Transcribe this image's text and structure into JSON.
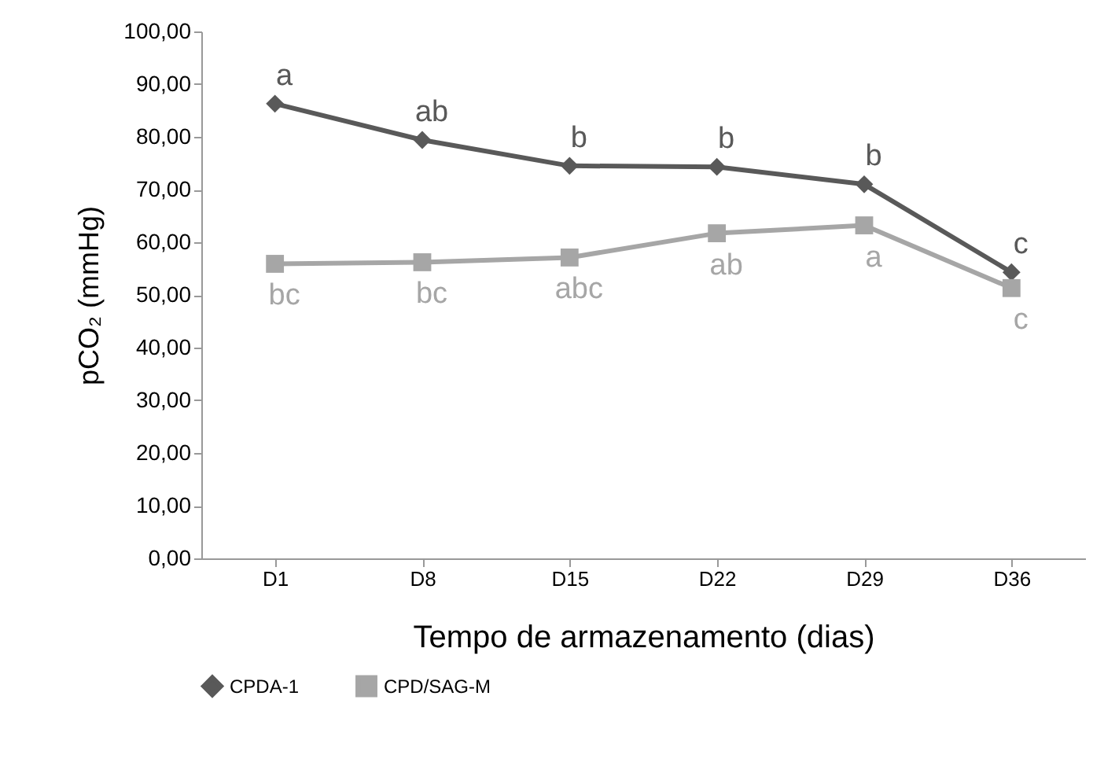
{
  "chart_data": {
    "type": "line",
    "xlabel": "Tempo de armazenamento (dias)",
    "ylabel": "pCO₂ (mmHg)",
    "categories": [
      "D1",
      "D8",
      "D15",
      "D22",
      "D29",
      "D36"
    ],
    "series": [
      {
        "name": "CPDA-1",
        "color": "#595959",
        "marker": "diamond",
        "values": [
          86.3,
          79.4,
          74.5,
          74.3,
          71.0,
          54.3
        ]
      },
      {
        "name": "CPD/SAG-M",
        "color": "#a6a6a6",
        "marker": "square",
        "values": [
          55.9,
          56.2,
          57.1,
          61.7,
          63.2,
          51.3
        ]
      }
    ],
    "ylim": [
      0,
      100
    ],
    "yticks": [
      {
        "value": 0,
        "label": "0,00"
      },
      {
        "value": 10,
        "label": "10,00"
      },
      {
        "value": 20,
        "label": "20,00"
      },
      {
        "value": 30,
        "label": "30,00"
      },
      {
        "value": 40,
        "label": "40,00"
      },
      {
        "value": 50,
        "label": "50,00"
      },
      {
        "value": 60,
        "label": "60,00"
      },
      {
        "value": 70,
        "label": "70,00"
      },
      {
        "value": 80,
        "label": "80,00"
      },
      {
        "value": 90,
        "label": "90,00"
      },
      {
        "value": 100,
        "label": "100,00"
      }
    ],
    "grid": false,
    "legend": "bottom",
    "line_style": "solid",
    "annotations": [
      {
        "text": "a",
        "x": "D1",
        "y": 86.3
      },
      {
        "text": "ab",
        "x": "D8",
        "y": 79.4
      },
      {
        "text": "b",
        "x": "D15",
        "y": 74.5
      },
      {
        "text": "b",
        "x": "D22",
        "y": 74.3
      },
      {
        "text": "b",
        "x": "D29",
        "y": 71.0
      },
      {
        "text": "c",
        "x": "D36",
        "y": 54.3
      },
      {
        "text": "bc",
        "x": "D1",
        "y": 55.9
      },
      {
        "text": "bc",
        "x": "D8",
        "y": 56.2
      },
      {
        "text": "abc",
        "x": "D15",
        "y": 57.1
      },
      {
        "text": "ab",
        "x": "D22",
        "y": 61.7
      },
      {
        "text": "a",
        "x": "D29",
        "y": 63.2
      },
      {
        "text": "c",
        "x": "D36",
        "y": 51.3
      }
    ]
  }
}
